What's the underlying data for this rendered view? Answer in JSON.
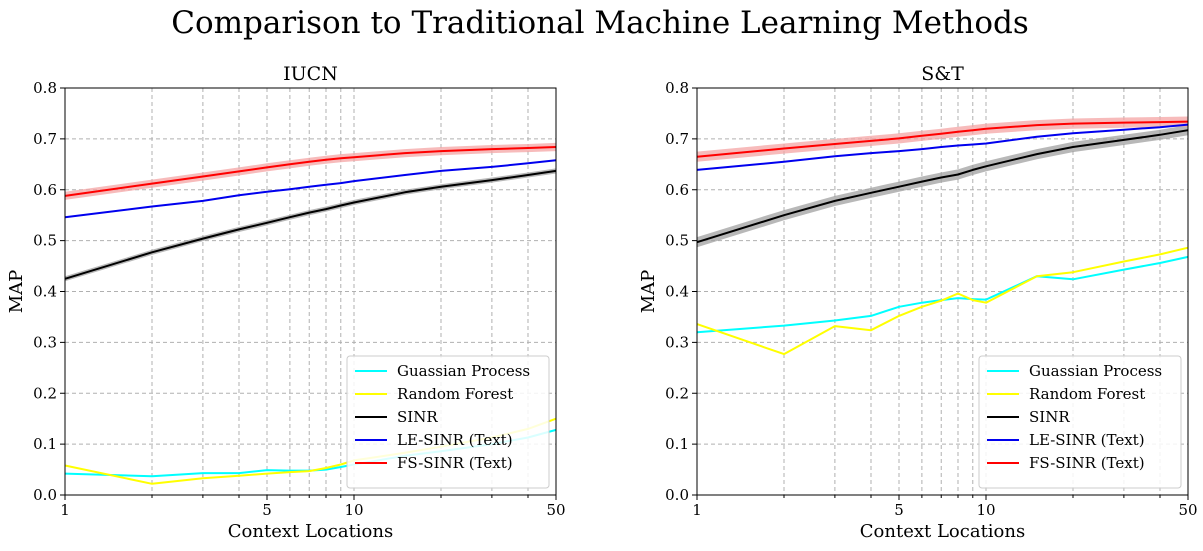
{
  "figure": {
    "title": "Comparison to Traditional Machine Learning Methods"
  },
  "chart_data": [
    {
      "type": "line",
      "title": "IUCN",
      "xlabel": "Context Locations",
      "ylabel": "MAP",
      "xscale": "log",
      "xlim": [
        1,
        50
      ],
      "ylim": [
        0,
        0.8
      ],
      "xticks": [
        1,
        5,
        10,
        50
      ],
      "xtick_labels": [
        "1",
        "5",
        "10",
        "50"
      ],
      "yticks": [
        0.0,
        0.1,
        0.2,
        0.3,
        0.4,
        0.5,
        0.6,
        0.7,
        0.8
      ],
      "ytick_labels": [
        "0.0",
        "0.1",
        "0.2",
        "0.3",
        "0.4",
        "0.5",
        "0.6",
        "0.7",
        "0.8"
      ],
      "grid": true,
      "legend_position": "lower-right",
      "x": [
        1,
        2,
        3,
        4,
        5,
        6,
        7,
        8,
        9,
        10,
        15,
        20,
        30,
        40,
        50
      ],
      "series": [
        {
          "name": "Guassian Process",
          "color": "#00ffff",
          "values": [
            0.042,
            0.037,
            0.043,
            0.043,
            0.049,
            0.048,
            0.048,
            0.05,
            0.055,
            0.06,
            0.077,
            0.086,
            0.1,
            0.113,
            0.128
          ]
        },
        {
          "name": "Random Forest",
          "color": "#ffff00",
          "values": [
            0.058,
            0.022,
            0.033,
            0.038,
            0.042,
            0.045,
            0.047,
            0.053,
            0.06,
            0.068,
            0.083,
            0.095,
            0.113,
            0.13,
            0.15
          ]
        },
        {
          "name": "SINR",
          "color": "#000000",
          "band_color": "#a0a0a0",
          "band": 0.005,
          "values": [
            0.425,
            0.477,
            0.504,
            0.522,
            0.535,
            0.546,
            0.555,
            0.562,
            0.569,
            0.575,
            0.595,
            0.606,
            0.619,
            0.629,
            0.637
          ]
        },
        {
          "name": "LE-SINR (Text)",
          "color": "#0000ee",
          "values": [
            0.546,
            0.567,
            0.578,
            0.589,
            0.596,
            0.601,
            0.606,
            0.61,
            0.613,
            0.617,
            0.629,
            0.637,
            0.645,
            0.652,
            0.658
          ]
        },
        {
          "name": "FS-SINR (Text)",
          "color": "#ff0000",
          "band_color": "#f4a4a4",
          "band": 0.008,
          "values": [
            0.588,
            0.612,
            0.626,
            0.636,
            0.644,
            0.65,
            0.655,
            0.659,
            0.662,
            0.664,
            0.672,
            0.676,
            0.68,
            0.682,
            0.684
          ]
        }
      ]
    },
    {
      "type": "line",
      "title": "S&T",
      "xlabel": "Context Locations",
      "ylabel": "MAP",
      "xscale": "log",
      "xlim": [
        1,
        50
      ],
      "ylim": [
        0,
        0.8
      ],
      "xticks": [
        1,
        5,
        10,
        50
      ],
      "xtick_labels": [
        "1",
        "5",
        "10",
        "50"
      ],
      "yticks": [
        0.0,
        0.1,
        0.2,
        0.3,
        0.4,
        0.5,
        0.6,
        0.7,
        0.8
      ],
      "ytick_labels": [
        "0.0",
        "0.1",
        "0.2",
        "0.3",
        "0.4",
        "0.5",
        "0.6",
        "0.7",
        "0.8"
      ],
      "grid": true,
      "legend_position": "lower-right",
      "x": [
        1,
        2,
        3,
        4,
        5,
        6,
        7,
        8,
        9,
        10,
        15,
        20,
        30,
        40,
        50
      ],
      "series": [
        {
          "name": "Guassian Process",
          "color": "#00ffff",
          "values": [
            0.32,
            0.333,
            0.343,
            0.352,
            0.37,
            0.378,
            0.383,
            0.387,
            0.385,
            0.384,
            0.43,
            0.424,
            0.443,
            0.456,
            0.468
          ]
        },
        {
          "name": "Random Forest",
          "color": "#ffff00",
          "values": [
            0.336,
            0.277,
            0.332,
            0.324,
            0.352,
            0.37,
            0.382,
            0.396,
            0.383,
            0.378,
            0.43,
            0.438,
            0.459,
            0.473,
            0.486
          ]
        },
        {
          "name": "SINR",
          "color": "#000000",
          "band_color": "#a0a0a0",
          "band": 0.01,
          "values": [
            0.497,
            0.55,
            0.578,
            0.594,
            0.606,
            0.616,
            0.624,
            0.63,
            0.639,
            0.646,
            0.67,
            0.684,
            0.698,
            0.708,
            0.717
          ]
        },
        {
          "name": "LE-SINR (Text)",
          "color": "#0000ee",
          "values": [
            0.639,
            0.655,
            0.666,
            0.672,
            0.676,
            0.68,
            0.684,
            0.687,
            0.689,
            0.691,
            0.704,
            0.711,
            0.718,
            0.723,
            0.728
          ]
        },
        {
          "name": "FS-SINR (Text)",
          "color": "#ff0000",
          "band_color": "#f4a4a4",
          "band": 0.01,
          "values": [
            0.665,
            0.681,
            0.69,
            0.696,
            0.701,
            0.706,
            0.71,
            0.714,
            0.717,
            0.72,
            0.727,
            0.73,
            0.732,
            0.733,
            0.734
          ]
        }
      ]
    }
  ]
}
